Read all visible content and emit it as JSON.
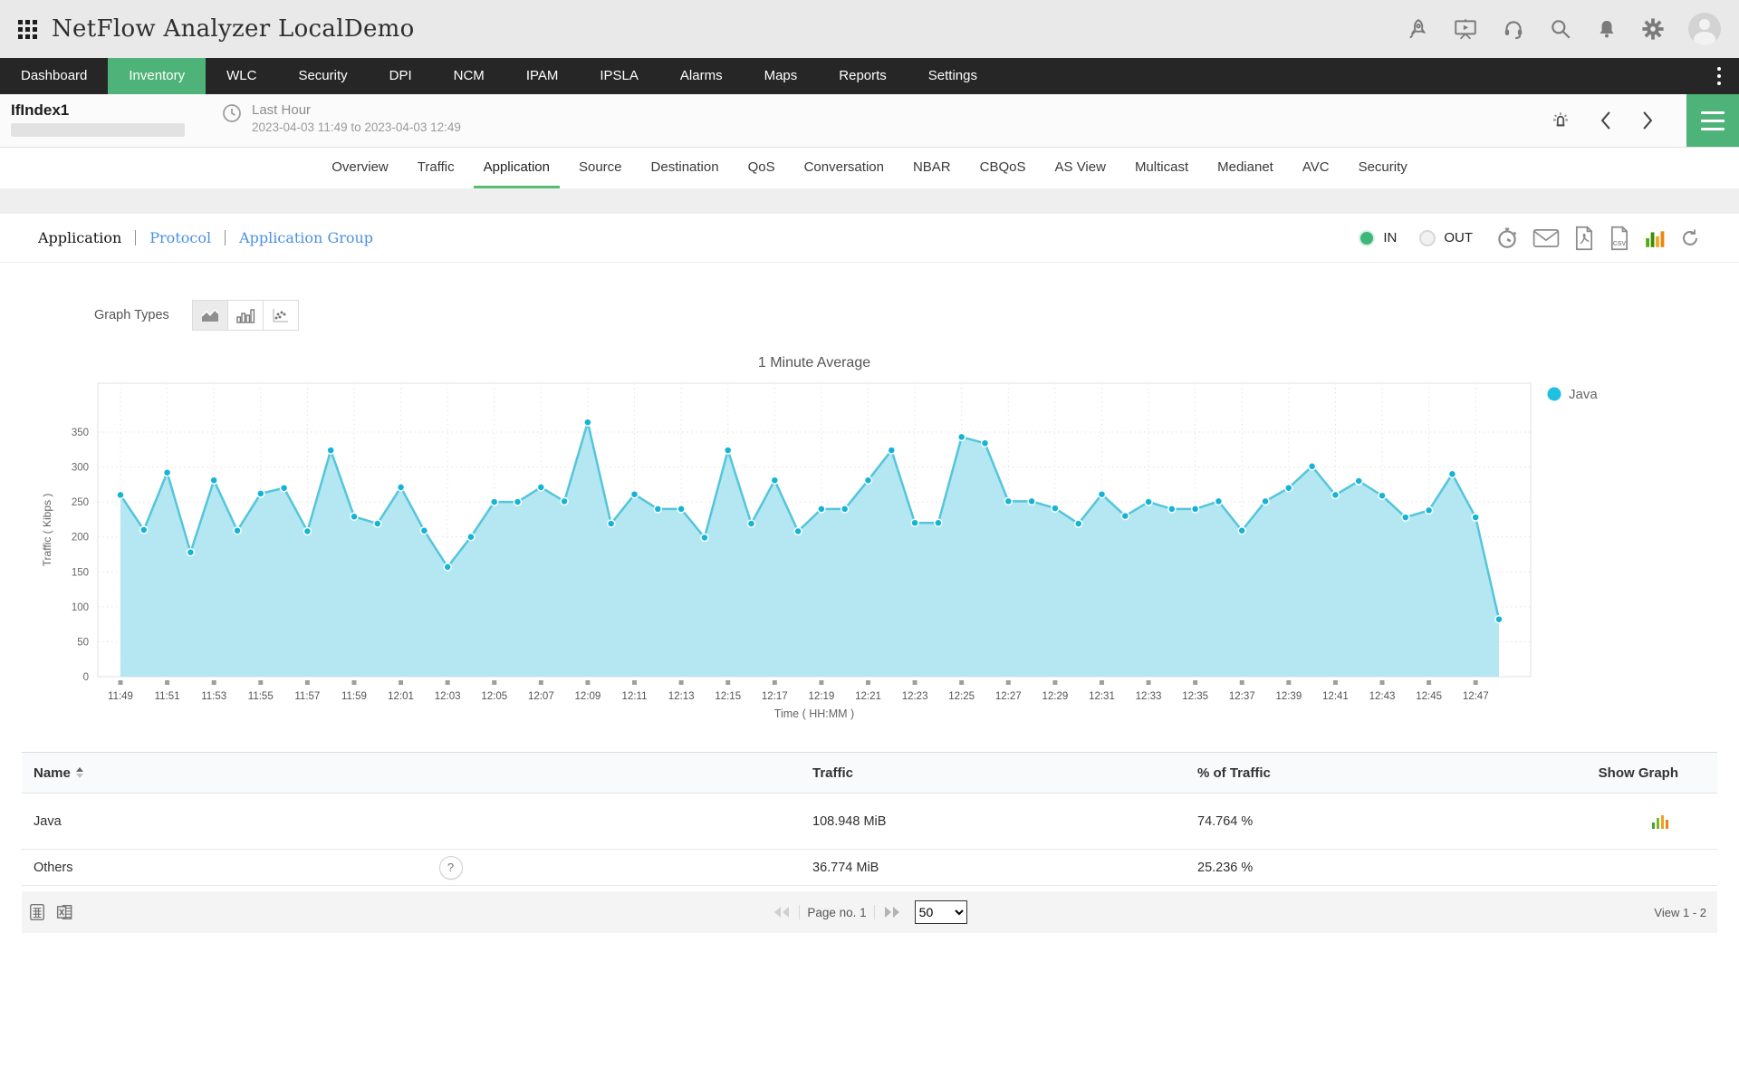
{
  "header": {
    "title": "NetFlow Analyzer LocalDemo",
    "icons": [
      "rocket-icon",
      "presentation-icon",
      "headset-icon",
      "search-icon",
      "bell-icon",
      "gear-icon",
      "avatar"
    ]
  },
  "nav": {
    "items": [
      {
        "label": "Dashboard",
        "active": false
      },
      {
        "label": "Inventory",
        "active": true
      },
      {
        "label": "WLC",
        "active": false
      },
      {
        "label": "Security",
        "active": false
      },
      {
        "label": "DPI",
        "active": false
      },
      {
        "label": "NCM",
        "active": false
      },
      {
        "label": "IPAM",
        "active": false
      },
      {
        "label": "IPSLA",
        "active": false
      },
      {
        "label": "Alarms",
        "active": false
      },
      {
        "label": "Maps",
        "active": false
      },
      {
        "label": "Reports",
        "active": false
      },
      {
        "label": "Settings",
        "active": false
      }
    ]
  },
  "subheader": {
    "title": "IfIndex1",
    "period_label": "Last Hour",
    "period_range": "2023-04-03 11:49 to 2023-04-03 12:49"
  },
  "tabs": {
    "items": [
      {
        "label": "Overview",
        "active": false
      },
      {
        "label": "Traffic",
        "active": false
      },
      {
        "label": "Application",
        "active": true
      },
      {
        "label": "Source",
        "active": false
      },
      {
        "label": "Destination",
        "active": false
      },
      {
        "label": "QoS",
        "active": false
      },
      {
        "label": "Conversation",
        "active": false
      },
      {
        "label": "NBAR",
        "active": false
      },
      {
        "label": "CBQoS",
        "active": false
      },
      {
        "label": "AS View",
        "active": false
      },
      {
        "label": "Multicast",
        "active": false
      },
      {
        "label": "Medianet",
        "active": false
      },
      {
        "label": "AVC",
        "active": false
      },
      {
        "label": "Security",
        "active": false
      }
    ]
  },
  "view_switcher": {
    "items": [
      {
        "label": "Application",
        "active": true
      },
      {
        "label": "Protocol",
        "active": false
      },
      {
        "label": "Application Group",
        "active": false
      }
    ]
  },
  "direction_toggle": {
    "in_label": "IN",
    "out_label": "OUT",
    "selected": "IN"
  },
  "graph_types": {
    "label": "Graph Types",
    "options": [
      "area",
      "bar",
      "scatter"
    ],
    "selected": "area"
  },
  "colors": {
    "accent_green": "#4db378",
    "tab_underline": "#57bb72",
    "link_blue": "#4a90e2",
    "chart_line": "#53c6db",
    "chart_fill": "#ace4f0",
    "chart_dot": "#14b4d7",
    "legend_dot": "#1fc0e0"
  },
  "chart_data": {
    "type": "area",
    "title": "1 Minute Average",
    "xlabel": "Time ( HH:MM )",
    "ylabel": "Traffic ( Kibps )",
    "ylim": [
      0,
      420
    ],
    "yticks": [
      0,
      50,
      100,
      150,
      200,
      250,
      300,
      350
    ],
    "x_tick_every": 2,
    "grid": true,
    "legend_position": "right",
    "series": [
      {
        "name": "Java",
        "color": "#1fc0e0",
        "x": [
          "11:49",
          "11:50",
          "11:51",
          "11:52",
          "11:53",
          "11:54",
          "11:55",
          "11:56",
          "11:57",
          "11:58",
          "11:59",
          "12:00",
          "12:01",
          "12:02",
          "12:03",
          "12:04",
          "12:05",
          "12:06",
          "12:07",
          "12:08",
          "12:09",
          "12:10",
          "12:11",
          "12:12",
          "12:13",
          "12:14",
          "12:15",
          "12:16",
          "12:17",
          "12:18",
          "12:19",
          "12:20",
          "12:21",
          "12:22",
          "12:23",
          "12:24",
          "12:25",
          "12:26",
          "12:27",
          "12:28",
          "12:29",
          "12:30",
          "12:31",
          "12:32",
          "12:33",
          "12:34",
          "12:35",
          "12:36",
          "12:37",
          "12:38",
          "12:39",
          "12:40",
          "12:41",
          "12:42",
          "12:43",
          "12:44",
          "12:45",
          "12:46",
          "12:47",
          "12:48"
        ],
        "values": [
          260,
          210,
          292,
          178,
          281,
          209,
          262,
          270,
          208,
          324,
          229,
          219,
          271,
          209,
          157,
          200,
          250,
          250,
          271,
          251,
          364,
          219,
          261,
          240,
          240,
          199,
          324,
          219,
          281,
          208,
          240,
          240,
          281,
          324,
          220,
          220,
          343,
          334,
          251,
          251,
          241,
          219,
          261,
          230,
          250,
          240,
          240,
          251,
          209,
          251,
          270,
          301,
          260,
          280,
          259,
          228,
          238,
          290,
          228,
          82
        ]
      }
    ]
  },
  "table": {
    "columns": [
      {
        "label": "Name",
        "sortable": true
      },
      {
        "label": "Traffic",
        "sortable": false
      },
      {
        "label": "% of Traffic",
        "sortable": false
      },
      {
        "label": "Show Graph",
        "sortable": false
      }
    ],
    "rows": [
      {
        "name": "Java",
        "traffic": "108.948 MiB",
        "pct": "74.764 %"
      },
      {
        "name": "Others",
        "traffic": "36.774 MiB",
        "pct": "25.236 %",
        "help": "?"
      }
    ]
  },
  "footer": {
    "page_label": "Page no. 1",
    "page_size": "50",
    "view_label": "View 1 - 2"
  }
}
